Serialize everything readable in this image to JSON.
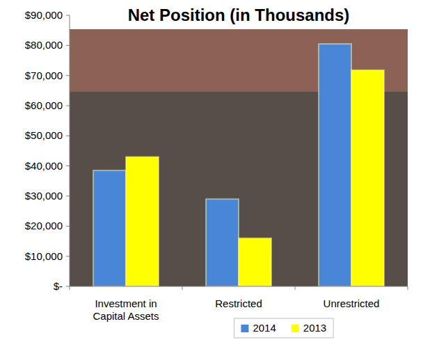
{
  "chart_data": {
    "type": "bar",
    "title": "Net Position (in Thousands)",
    "categories": [
      "Investment in Capital Assets",
      "Restricted",
      "Unrestricted"
    ],
    "series": [
      {
        "name": "2014",
        "color": "#4a86d8",
        "values": [
          38500,
          29000,
          80500
        ]
      },
      {
        "name": "2013",
        "color": "#ffff00",
        "values": [
          43000,
          16000,
          71800
        ]
      }
    ],
    "ylim": [
      0,
      90000
    ],
    "yticks": [
      {
        "value": 0,
        "label": "$-"
      },
      {
        "value": 10000,
        "label": "$10,000"
      },
      {
        "value": 20000,
        "label": "$20,000"
      },
      {
        "value": 30000,
        "label": "$30,000"
      },
      {
        "value": 40000,
        "label": "$40,000"
      },
      {
        "value": 50000,
        "label": "$50,000"
      },
      {
        "value": 60000,
        "label": "$60,000"
      },
      {
        "value": 70000,
        "label": "$70,000"
      },
      {
        "value": 80000,
        "label": "$80,000"
      },
      {
        "value": 90000,
        "label": "$90,000"
      }
    ],
    "grid": false,
    "legend": "bottom"
  }
}
